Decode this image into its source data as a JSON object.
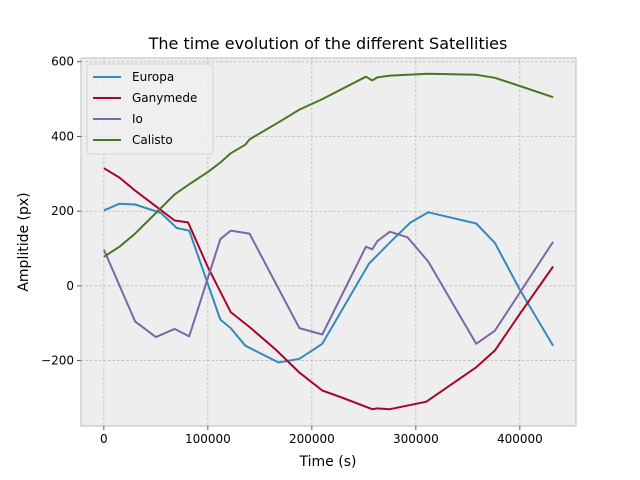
{
  "chart_data": {
    "type": "line",
    "title": "The time evolution of the different Satellities",
    "xlabel": "Time (s)",
    "ylabel": "Amplitide (px)",
    "xlim": [
      -22000,
      454000
    ],
    "ylim": [
      -375,
      610
    ],
    "xticks": [
      0,
      100000,
      200000,
      300000,
      400000
    ],
    "xtick_labels": [
      "0",
      "100000",
      "200000",
      "300000",
      "400000"
    ],
    "yticks": [
      -200,
      0,
      200,
      400,
      600
    ],
    "ytick_labels": [
      "−200",
      "0",
      "200",
      "400",
      "600"
    ],
    "grid": true,
    "legend": "top-left",
    "series": [
      {
        "name": "Europa",
        "color": "#348ABD",
        "x": [
          0,
          15000,
          30000,
          55000,
          70000,
          82000,
          112000,
          122000,
          136000,
          168000,
          188000,
          210000,
          255000,
          280000,
          295000,
          312000,
          358000,
          376000,
          400000,
          432000
        ],
        "y": [
          202,
          220,
          218,
          195,
          155,
          148,
          -90,
          -113,
          -160,
          -205,
          -195,
          -155,
          60,
          130,
          170,
          197,
          167,
          115,
          -10,
          -160
        ]
      },
      {
        "name": "Ganymede",
        "color": "#A60628",
        "x": [
          0,
          15000,
          30000,
          50000,
          68000,
          81000,
          100000,
          122000,
          140000,
          165000,
          188000,
          210000,
          230000,
          258000,
          263000,
          275000,
          310000,
          358000,
          376000,
          400000,
          432000
        ],
        "y": [
          315,
          290,
          255,
          213,
          175,
          170,
          50,
          -70,
          -110,
          -170,
          -232,
          -280,
          -300,
          -330,
          -328,
          -330,
          -310,
          -218,
          -173,
          -75,
          52
        ]
      },
      {
        "name": "Io",
        "color": "#7A68A6",
        "x": [
          0,
          30000,
          50000,
          68000,
          82000,
          112000,
          122000,
          140000,
          188000,
          210000,
          252000,
          258000,
          263000,
          275000,
          292000,
          312000,
          358000,
          376000,
          432000
        ],
        "y": [
          97,
          -95,
          -137,
          -115,
          -135,
          125,
          148,
          140,
          -113,
          -130,
          105,
          98,
          120,
          145,
          130,
          65,
          -155,
          -120,
          118
        ]
      },
      {
        "name": "Calisto",
        "color": "#467821",
        "x": [
          0,
          15000,
          30000,
          50000,
          68000,
          82000,
          100000,
          112000,
          122000,
          136000,
          140000,
          168000,
          188000,
          210000,
          252000,
          258000,
          263000,
          275000,
          312000,
          358000,
          376000,
          400000,
          432000
        ],
        "y": [
          78,
          105,
          140,
          195,
          245,
          272,
          305,
          330,
          355,
          378,
          392,
          438,
          472,
          500,
          560,
          550,
          558,
          563,
          568,
          565,
          557,
          535,
          505
        ]
      }
    ]
  }
}
